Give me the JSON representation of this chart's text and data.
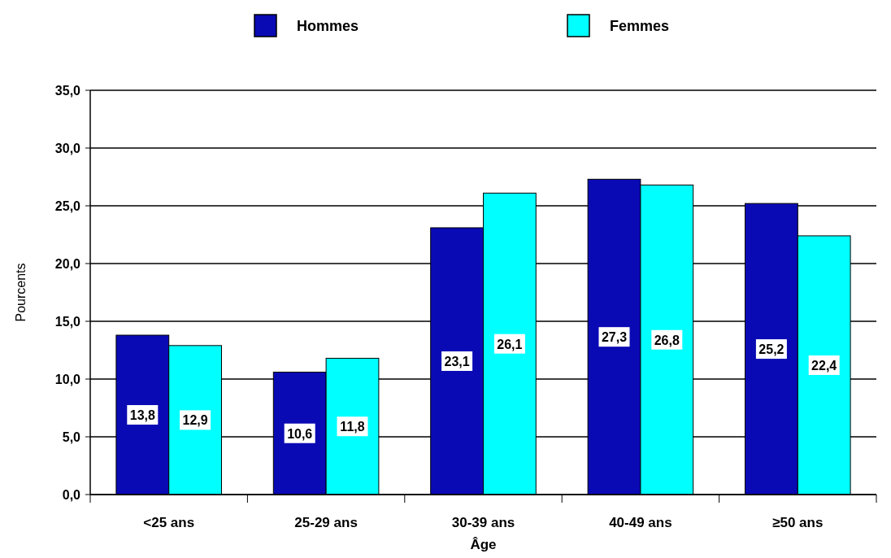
{
  "chart_data": {
    "type": "bar",
    "xlabel": "Âge",
    "ylabel": "Pourcents",
    "categories": [
      "<25 ans",
      "25-29 ans",
      "30-39 ans",
      "40-49 ans",
      "≥50 ans"
    ],
    "series": [
      {
        "name": "Hommes",
        "color": "#0a0ab4",
        "values": [
          13.8,
          10.6,
          23.1,
          27.3,
          25.2
        ],
        "value_labels": [
          "13,8",
          "10,6",
          "23,1",
          "27,3",
          "25,2"
        ]
      },
      {
        "name": "Femmes",
        "color": "#00ffff",
        "values": [
          12.9,
          11.8,
          26.1,
          26.8,
          22.4
        ],
        "value_labels": [
          "12,9",
          "11,8",
          "26,1",
          "26,8",
          "22,4"
        ]
      }
    ],
    "ylim": [
      0,
      35
    ],
    "yticks": [
      {
        "value": 0,
        "label": "0,0"
      },
      {
        "value": 5,
        "label": "5,0"
      },
      {
        "value": 10,
        "label": "10,0"
      },
      {
        "value": 15,
        "label": "15,0"
      },
      {
        "value": 20,
        "label": "20,0"
      },
      {
        "value": 25,
        "label": "25,0"
      },
      {
        "value": 30,
        "label": "30,0"
      },
      {
        "value": 35,
        "label": "35,0"
      }
    ],
    "grid": "y",
    "legend": "top"
  }
}
